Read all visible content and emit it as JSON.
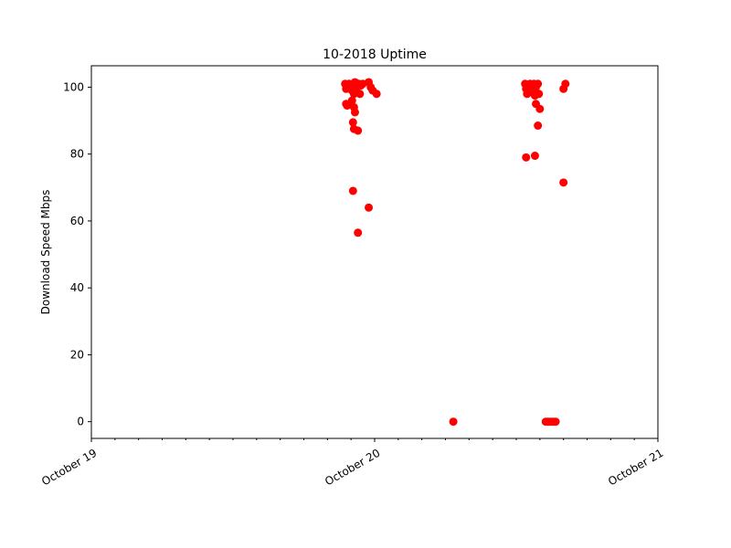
{
  "chart_data": {
    "type": "scatter",
    "title": "10-2018 Uptime",
    "xlabel": "",
    "ylabel": "Download Speed Mbps",
    "x_axis": {
      "type": "date",
      "range": [
        "2018-10-19T00:00",
        "2018-10-21T00:00"
      ],
      "major_ticks": [
        {
          "date": "2018-10-19T00:00",
          "label": "October 19"
        },
        {
          "date": "2018-10-20T00:00",
          "label": "October 20"
        },
        {
          "date": "2018-10-21T00:00",
          "label": "October 21"
        }
      ],
      "minor_tick_hours": 2
    },
    "y_axis": {
      "ylim": [
        -5,
        106.4
      ],
      "ticks": [
        0,
        20,
        40,
        60,
        80,
        100
      ]
    },
    "grid": false,
    "marker_color": "#ff0000",
    "series": [
      {
        "points": [
          [
            "2018-10-19T21:30",
            101
          ],
          [
            "2018-10-19T21:40",
            100
          ],
          [
            "2018-10-19T21:50",
            101
          ],
          [
            "2018-10-19T22:00",
            100.5
          ],
          [
            "2018-10-19T22:10",
            101
          ],
          [
            "2018-10-19T22:20",
            101.5
          ],
          [
            "2018-10-19T22:30",
            100
          ],
          [
            "2018-10-19T22:40",
            101
          ],
          [
            "2018-10-19T22:50",
            100.5
          ],
          [
            "2018-10-19T23:00",
            101
          ],
          [
            "2018-10-19T21:35",
            99.5
          ],
          [
            "2018-10-19T22:05",
            99
          ],
          [
            "2018-10-19T22:15",
            98
          ],
          [
            "2018-10-19T22:25",
            98.5
          ],
          [
            "2018-10-19T22:45",
            98
          ],
          [
            "2018-10-19T21:35",
            95
          ],
          [
            "2018-10-19T21:40",
            94.5
          ],
          [
            "2018-10-19T22:05",
            96
          ],
          [
            "2018-10-19T22:15",
            94
          ],
          [
            "2018-10-19T22:20",
            92.5
          ],
          [
            "2018-10-19T22:10",
            89.5
          ],
          [
            "2018-10-19T22:15",
            87.5
          ],
          [
            "2018-10-19T22:35",
            87
          ],
          [
            "2018-10-19T22:10",
            69
          ],
          [
            "2018-10-19T22:35",
            56.5
          ],
          [
            "2018-10-19T23:30",
            101.5
          ],
          [
            "2018-10-19T23:40",
            100
          ],
          [
            "2018-10-19T23:50",
            99
          ],
          [
            "2018-10-20T00:10",
            98
          ],
          [
            "2018-10-19T23:30",
            64
          ],
          [
            "2018-10-20T06:40",
            0
          ],
          [
            "2018-10-20T12:45",
            101
          ],
          [
            "2018-10-20T12:50",
            99.5
          ],
          [
            "2018-10-20T13:00",
            100.5
          ],
          [
            "2018-10-20T13:10",
            101
          ],
          [
            "2018-10-20T13:20",
            100
          ],
          [
            "2018-10-20T13:30",
            101
          ],
          [
            "2018-10-20T13:40",
            100
          ],
          [
            "2018-10-20T13:50",
            101
          ],
          [
            "2018-10-20T12:55",
            98
          ],
          [
            "2018-10-20T13:15",
            98.5
          ],
          [
            "2018-10-20T13:35",
            97.5
          ],
          [
            "2018-10-20T13:45",
            98
          ],
          [
            "2018-10-20T13:55",
            98
          ],
          [
            "2018-10-20T13:40",
            95
          ],
          [
            "2018-10-20T14:00",
            93.5
          ],
          [
            "2018-10-20T13:50",
            88.5
          ],
          [
            "2018-10-20T12:50",
            79
          ],
          [
            "2018-10-20T13:35",
            79.5
          ],
          [
            "2018-10-20T14:30",
            0
          ],
          [
            "2018-10-20T14:40",
            0
          ],
          [
            "2018-10-20T14:50",
            0
          ],
          [
            "2018-10-20T15:00",
            0
          ],
          [
            "2018-10-20T15:10",
            0
          ],
          [
            "2018-10-20T15:20",
            0
          ],
          [
            "2018-10-20T16:00",
            99.5
          ],
          [
            "2018-10-20T16:10",
            101
          ],
          [
            "2018-10-20T16:00",
            71.5
          ]
        ]
      }
    ]
  }
}
